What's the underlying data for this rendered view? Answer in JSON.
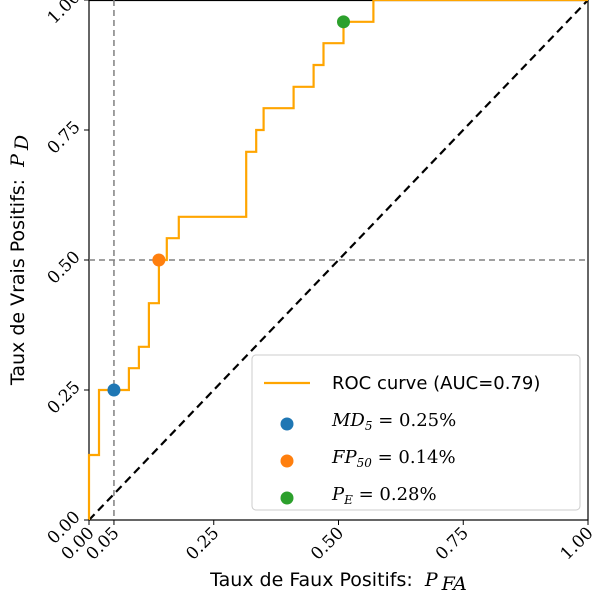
{
  "chart_data": {
    "type": "line",
    "xlabel": "Taux de Faux Positifs:",
    "xlabel_math": "P",
    "xlabel_sub": "FA",
    "ylabel": "Taux de Vrais Positifs:",
    "ylabel_math": "P",
    "ylabel_sub": "D",
    "xlim": [
      0,
      1
    ],
    "ylim": [
      0,
      1.0
    ],
    "x_ticks": [
      0.0,
      0.05,
      0.25,
      0.5,
      0.75,
      1.0
    ],
    "x_tick_labels": [
      "0.00",
      "0.05",
      "0.25",
      "0.50",
      "0.75",
      "1.00"
    ],
    "y_ticks": [
      0.0,
      0.25,
      0.5,
      0.75,
      1.0
    ],
    "y_tick_labels": [
      "0.00",
      "0.25",
      "0.50",
      "0.75",
      "1.00"
    ],
    "grid": false,
    "legend_position": "bottom-right",
    "reference_lines": {
      "vertical_x": 0.05,
      "horizontal_y": 0.5,
      "diagonal": true,
      "color": "#808080",
      "diagonal_color": "#000000"
    },
    "series": [
      {
        "name": "ROC curve (AUC=0.79)",
        "color": "#ffa500",
        "points": [
          [
            0.0,
            0.0
          ],
          [
            0.0,
            0.125
          ],
          [
            0.02,
            0.125
          ],
          [
            0.02,
            0.25
          ],
          [
            0.08,
            0.25
          ],
          [
            0.08,
            0.292
          ],
          [
            0.1,
            0.292
          ],
          [
            0.1,
            0.333
          ],
          [
            0.12,
            0.333
          ],
          [
            0.12,
            0.417
          ],
          [
            0.14,
            0.417
          ],
          [
            0.14,
            0.5
          ],
          [
            0.156,
            0.5
          ],
          [
            0.156,
            0.542
          ],
          [
            0.18,
            0.542
          ],
          [
            0.18,
            0.583
          ],
          [
            0.315,
            0.583
          ],
          [
            0.315,
            0.708
          ],
          [
            0.335,
            0.708
          ],
          [
            0.335,
            0.75
          ],
          [
            0.35,
            0.75
          ],
          [
            0.35,
            0.792
          ],
          [
            0.41,
            0.792
          ],
          [
            0.41,
            0.833
          ],
          [
            0.45,
            0.833
          ],
          [
            0.45,
            0.875
          ],
          [
            0.47,
            0.875
          ],
          [
            0.47,
            0.917
          ],
          [
            0.51,
            0.917
          ],
          [
            0.51,
            0.958
          ],
          [
            0.57,
            0.958
          ],
          [
            0.57,
            1.0
          ],
          [
            1.0,
            1.0
          ]
        ]
      }
    ],
    "markers": [
      {
        "label": "MD",
        "label_sub": "5",
        "label_rest": " = 0.25%",
        "x": 0.05,
        "y": 0.25,
        "color": "#1f77b4"
      },
      {
        "label": "FP",
        "label_sub": "50",
        "label_rest": " = 0.14%",
        "x": 0.14,
        "y": 0.5,
        "color": "#ff7f0e"
      },
      {
        "label": "P",
        "label_sub": "E",
        "label_rest": " = 0.28%",
        "x": 0.51,
        "y": 0.958,
        "color": "#2ca02c"
      }
    ]
  }
}
